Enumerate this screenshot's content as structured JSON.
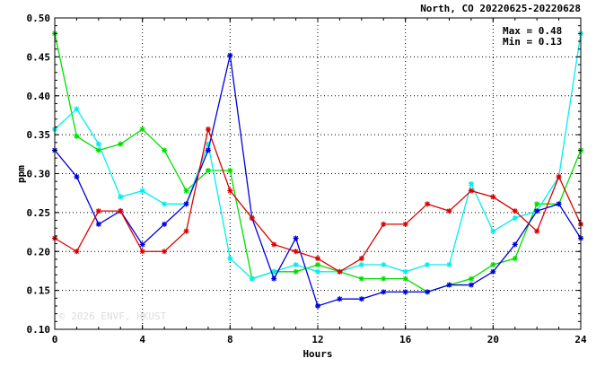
{
  "chart_data": {
    "type": "line",
    "title": "North, CO 20220625-20220628",
    "xlabel": "Hours",
    "ylabel": "ppm",
    "xlim": [
      0,
      24
    ],
    "ylim": [
      0.1,
      0.5
    ],
    "xticks": [
      "0",
      "4",
      "8",
      "12",
      "16",
      "20",
      "24"
    ],
    "yticks": [
      "0.10",
      "0.15",
      "0.20",
      "0.25",
      "0.30",
      "0.35",
      "0.40",
      "0.45",
      "0.50"
    ],
    "grid": true,
    "stats": {
      "max": "Max = 0.48",
      "min": "Min = 0.13"
    },
    "watermark": "© 2026 ENVF, HKUST",
    "x": [
      0,
      1,
      2,
      3,
      4,
      5,
      6,
      7,
      8,
      9,
      10,
      11,
      12,
      13,
      14,
      15,
      16,
      17,
      18,
      19,
      20,
      21,
      22,
      23,
      24
    ],
    "series": [
      {
        "color": "#00dd00",
        "values": [
          0.48,
          0.348,
          0.33,
          0.338,
          0.357,
          0.33,
          0.278,
          0.304,
          0.304,
          0.165,
          0.174,
          0.174,
          0.183,
          0.174,
          0.165,
          0.165,
          0.165,
          0.148,
          0.157,
          0.165,
          0.183,
          0.191,
          0.261,
          0.261,
          0.33
        ]
      },
      {
        "color": "#00eeee",
        "values": [
          0.357,
          0.383,
          0.338,
          0.27,
          0.278,
          0.261,
          0.261,
          0.338,
          0.191,
          0.165,
          0.174,
          0.183,
          0.174,
          0.174,
          0.183,
          0.183,
          0.174,
          0.183,
          0.183,
          0.287,
          0.226,
          0.243,
          0.252,
          0.296,
          0.48
        ]
      },
      {
        "color": "#0000dd",
        "values": [
          0.33,
          0.296,
          0.235,
          0.252,
          0.209,
          0.235,
          0.261,
          0.33,
          0.452,
          0.243,
          0.165,
          0.217,
          0.13,
          0.139,
          0.139,
          0.148,
          0.148,
          0.148,
          0.157,
          0.157,
          0.174,
          0.209,
          0.252,
          0.261,
          0.217
        ]
      },
      {
        "color": "#dd0000",
        "values": [
          0.217,
          0.2,
          0.252,
          0.252,
          0.2,
          0.2,
          0.226,
          0.357,
          0.278,
          0.243,
          0.209,
          0.2,
          0.191,
          0.174,
          0.191,
          0.235,
          0.235,
          0.261,
          0.252,
          0.278,
          0.27,
          0.252,
          0.226,
          0.296,
          0.235
        ]
      }
    ]
  }
}
